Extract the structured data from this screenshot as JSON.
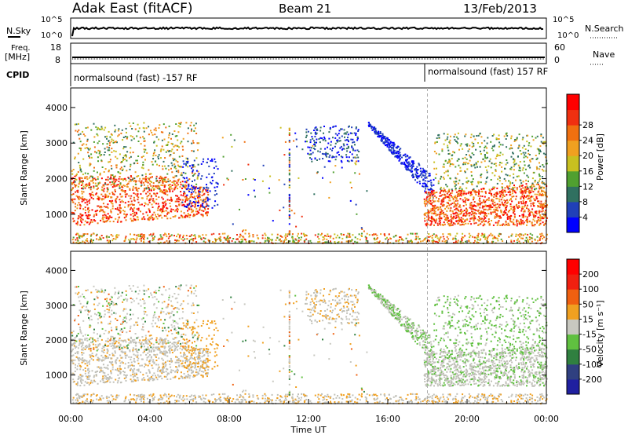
{
  "header": {
    "station": "Adak East (fitACF)",
    "beam": "Beam 21",
    "date": "13/Feb/2013"
  },
  "top_panels": {
    "nsky_label": "N.Sky",
    "nsky_ticks": [
      "10^5",
      "10^0"
    ],
    "nsearch_label": "N.Search",
    "nsearch_ticks": [
      "10^5",
      "10^0"
    ],
    "freq_label": "Freq.",
    "freq_unit": "[MHz]",
    "freq_ticks": [
      "18",
      "8"
    ],
    "nave_label": "Nave",
    "nave_ticks": [
      "60",
      "0"
    ],
    "cpid_label": "CPID",
    "cpid_segments": [
      {
        "text": "normalsound (fast) -157 RF",
        "start_hour": 0
      },
      {
        "text": "normalsound (fast) 157 RF",
        "start_hour": 18
      }
    ]
  },
  "chart_data": [
    {
      "type": "heatmap",
      "name": "power",
      "ylabel": "Slant Range [km]",
      "ylim": [
        180,
        4550
      ],
      "yticks": [
        1000,
        2000,
        3000,
        4000
      ],
      "xlim": [
        0,
        24
      ],
      "colorbar_label": "Power [dB]",
      "colorbar_ticks": [
        4,
        8,
        12,
        16,
        20,
        24,
        28
      ],
      "colorbar_colors": [
        "#0000ff",
        "#2040b8",
        "#307060",
        "#50a030",
        "#c8c020",
        "#f0a020",
        "#f07010",
        "#f03010",
        "#ff0000"
      ]
    },
    {
      "type": "heatmap",
      "name": "velocity",
      "ylabel": "Slant Range [km]",
      "ylim": [
        180,
        4550
      ],
      "yticks": [
        1000,
        2000,
        3000,
        4000
      ],
      "xlim": [
        0,
        24
      ],
      "xlabel": "Time UT",
      "xticks": [
        "00:00",
        "04:00",
        "08:00",
        "12:00",
        "16:00",
        "20:00",
        "00:00"
      ],
      "colorbar_label": "Velocity [m s⁻¹]",
      "colorbar_ticks": [
        200,
        100,
        50,
        15,
        -15,
        -50,
        -100,
        -200
      ],
      "colorbar_colors": [
        "#2020a0",
        "#304080",
        "#308040",
        "#60c040",
        "#c8c8c0",
        "#f0a020",
        "#f06010",
        "#f02010",
        "#ff0000"
      ]
    }
  ],
  "colors": {
    "ground_scatter": "#c0c0b8"
  }
}
